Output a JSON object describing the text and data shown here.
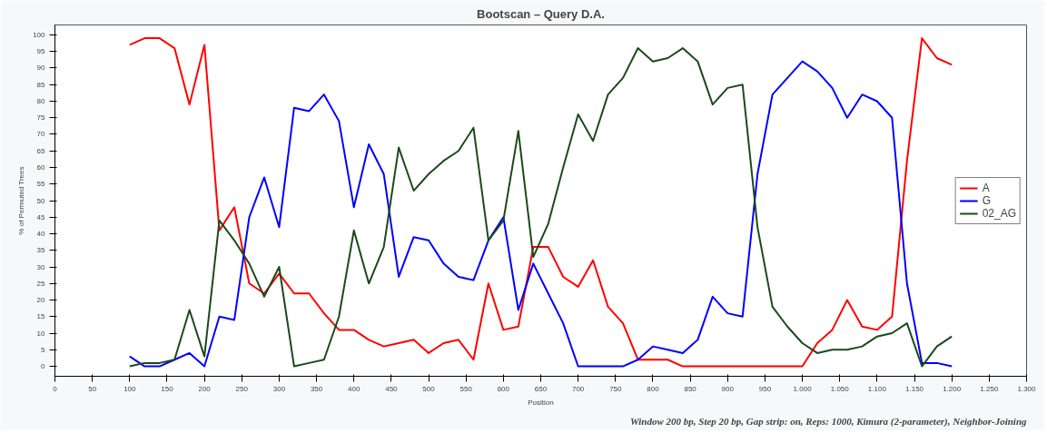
{
  "chart_data": {
    "type": "line",
    "title": "Bootscan – Query D.A.",
    "xlabel": "Position",
    "ylabel": "% of Permuted Trees",
    "x": [
      100,
      120,
      140,
      160,
      180,
      200,
      220,
      240,
      260,
      280,
      300,
      320,
      340,
      360,
      380,
      400,
      420,
      440,
      460,
      480,
      500,
      520,
      540,
      560,
      580,
      600,
      620,
      640,
      660,
      680,
      700,
      720,
      740,
      760,
      780,
      800,
      820,
      840,
      860,
      880,
      900,
      920,
      940,
      960,
      980,
      1000,
      1020,
      1040,
      1060,
      1080,
      1100,
      1120,
      1140,
      1160,
      1180,
      1200
    ],
    "series": [
      {
        "name": "A",
        "color": "#ff0000",
        "values": [
          97,
          99,
          99,
          96,
          79,
          97,
          41,
          48,
          25,
          22,
          28,
          22,
          22,
          16,
          11,
          11,
          8,
          6,
          7,
          8,
          4,
          7,
          8,
          2,
          25,
          11,
          12,
          36,
          36,
          27,
          24,
          32,
          18,
          13,
          2,
          2,
          2,
          0,
          0,
          0,
          0,
          0,
          0,
          0,
          0,
          0,
          7,
          11,
          20,
          12,
          11,
          15,
          62,
          99,
          93,
          91
        ]
      },
      {
        "name": "G",
        "color": "#0000ff",
        "values": [
          3,
          0,
          0,
          2,
          4,
          0,
          15,
          14,
          45,
          57,
          42,
          78,
          77,
          82,
          74,
          48,
          67,
          58,
          27,
          39,
          38,
          31,
          27,
          26,
          38,
          45,
          17,
          31,
          22,
          13,
          0,
          0,
          0,
          0,
          2,
          6,
          5,
          4,
          8,
          21,
          16,
          15,
          58,
          82,
          87,
          92,
          89,
          84,
          75,
          82,
          80,
          75,
          25,
          1,
          1,
          0
        ]
      },
      {
        "name": "02_AG",
        "color": "#1a4a1a",
        "values": [
          0,
          1,
          1,
          2,
          17,
          3,
          44,
          38,
          31,
          21,
          30,
          0,
          1,
          2,
          15,
          41,
          25,
          36,
          66,
          53,
          58,
          62,
          65,
          72,
          38,
          44,
          71,
          33,
          43,
          60,
          76,
          68,
          82,
          87,
          96,
          92,
          93,
          96,
          92,
          79,
          84,
          85,
          42,
          18,
          12,
          7,
          4,
          5,
          5,
          6,
          9,
          10,
          13,
          0,
          6,
          9
        ]
      }
    ],
    "xlim": [
      0,
      1300
    ],
    "xticks": [
      0,
      50,
      100,
      150,
      200,
      250,
      300,
      350,
      400,
      450,
      500,
      550,
      600,
      650,
      700,
      750,
      800,
      850,
      900,
      950,
      {
        "value": 1000,
        "label": "1.000"
      },
      {
        "value": 1050,
        "label": "1.050"
      },
      {
        "value": 1100,
        "label": "1.100"
      },
      {
        "value": 1150,
        "label": "1.150"
      },
      {
        "value": 1200,
        "label": "1.200"
      },
      {
        "value": 1250,
        "label": "1.250"
      },
      {
        "value": 1300,
        "label": "1.300"
      }
    ],
    "ylim": [
      -3,
      103
    ],
    "yticks": [
      0,
      5,
      10,
      15,
      20,
      25,
      30,
      35,
      40,
      45,
      50,
      55,
      60,
      65,
      70,
      75,
      80,
      85,
      90,
      95,
      100
    ],
    "legend": "right",
    "annotations": [
      "Window 200 bp, Step 20 bp, Gap strip: on, Reps: 1000, Kimura (2-parameter), Neighbor-Joining"
    ]
  }
}
